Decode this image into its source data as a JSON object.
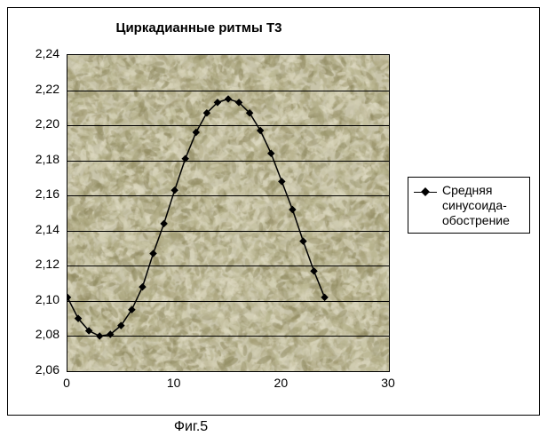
{
  "chart": {
    "type": "line",
    "title": "Циркадианные ритмы Т3",
    "title_fontsize": 15,
    "title_fontweight": "bold",
    "caption": "Фиг.5",
    "background_color": "#ffffff",
    "plot_background_base": "#c8c4aa",
    "plot_noise_colors": [
      "#b8b48e",
      "#d4d0b4",
      "#a8a27a",
      "#e0dcc4",
      "#908a60"
    ],
    "grid_color": "#000000",
    "axis_color": "#000000",
    "xlim": [
      0,
      30
    ],
    "ylim": [
      2.06,
      2.24
    ],
    "xtick_step": 10,
    "ytick_step": 0.02,
    "xticks": [
      "0",
      "10",
      "20",
      "30"
    ],
    "yticks": [
      "2,06",
      "2,08",
      "2,10",
      "2,12",
      "2,14",
      "2,16",
      "2,18",
      "2,20",
      "2,22",
      "2,24"
    ],
    "tick_fontsize": 14,
    "series": [
      {
        "name": "Средняя синусоида-обострение",
        "color": "#000000",
        "line_width": 1.5,
        "marker": "diamond",
        "marker_size": 6,
        "marker_color": "#000000",
        "x": [
          0,
          1,
          2,
          3,
          4,
          5,
          6,
          7,
          8,
          9,
          10,
          11,
          12,
          13,
          14,
          15,
          16,
          17,
          18,
          19,
          20,
          21,
          22,
          23,
          24
        ],
        "y": [
          2.102,
          2.09,
          2.083,
          2.08,
          2.081,
          2.086,
          2.095,
          2.108,
          2.127,
          2.144,
          2.163,
          2.181,
          2.196,
          2.207,
          2.213,
          2.215,
          2.213,
          2.207,
          2.197,
          2.184,
          2.168,
          2.152,
          2.134,
          2.117,
          2.102
        ]
      }
    ],
    "legend": {
      "position": "right",
      "border_color": "#000000",
      "background": "#ffffff",
      "fontsize": 14,
      "labels": [
        "Средняя синусоида-обострение"
      ]
    }
  }
}
